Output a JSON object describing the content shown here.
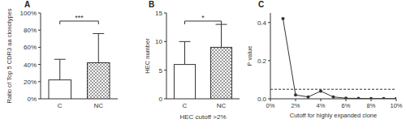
{
  "chart_data": [
    {
      "type": "bar",
      "title": "A",
      "ylabel": "Ratio of Top 5 CDR3 aa clonotypes",
      "categories": [
        "C",
        "NC"
      ],
      "values": [
        22,
        42
      ],
      "errors": [
        24,
        34
      ],
      "colors": [
        "#ffffff",
        "#7f7f7f"
      ],
      "significance": "***",
      "ylim": [
        0,
        100
      ],
      "yticks": [
        {
          "value": 0,
          "label": "0%"
        },
        {
          "value": 20,
          "label": "20%"
        },
        {
          "value": 40,
          "label": "40%"
        },
        {
          "value": 60,
          "label": "60%"
        },
        {
          "value": 80,
          "label": "80%"
        },
        {
          "value": 100,
          "label": "100%"
        }
      ]
    },
    {
      "type": "bar",
      "title": "B",
      "ylabel": "HEC number",
      "xlabel": "HEC cutoff >2%",
      "categories": [
        "C",
        "NC"
      ],
      "values": [
        6,
        9
      ],
      "errors": [
        4,
        4
      ],
      "colors": [
        "#ffffff",
        "#7f7f7f"
      ],
      "significance": "*",
      "ylim": [
        0,
        15
      ],
      "yticks": [
        0,
        5,
        10,
        15
      ]
    },
    {
      "type": "line",
      "title": "C",
      "ylabel": "P value",
      "xlabel": "Cutoff for highly expanded clone",
      "x": [
        1,
        2,
        3,
        4,
        5,
        6,
        7,
        8,
        9,
        10
      ],
      "values": [
        0.42,
        0.02,
        0.01,
        0.04,
        0.01,
        0.003,
        0.002,
        0.001,
        0.001,
        0.001
      ],
      "color": "#333333",
      "marker": "circle",
      "line_style": "solid",
      "threshold": 0.05,
      "xlim": [
        0,
        10
      ],
      "xticks": [
        {
          "value": 0,
          "label": "0%"
        },
        {
          "value": 2,
          "label": "2%"
        },
        {
          "value": 4,
          "label": "4%"
        },
        {
          "value": 6,
          "label": "6%"
        },
        {
          "value": 8,
          "label": "8%"
        },
        {
          "value": 10,
          "label": "10%"
        }
      ],
      "ylim": [
        0,
        0.45
      ],
      "yticks": [
        {
          "value": 0,
          "label": "0.0"
        },
        {
          "value": 0.2,
          "label": "0.2"
        },
        {
          "value": 0.4,
          "label": "0.4"
        }
      ]
    }
  ]
}
